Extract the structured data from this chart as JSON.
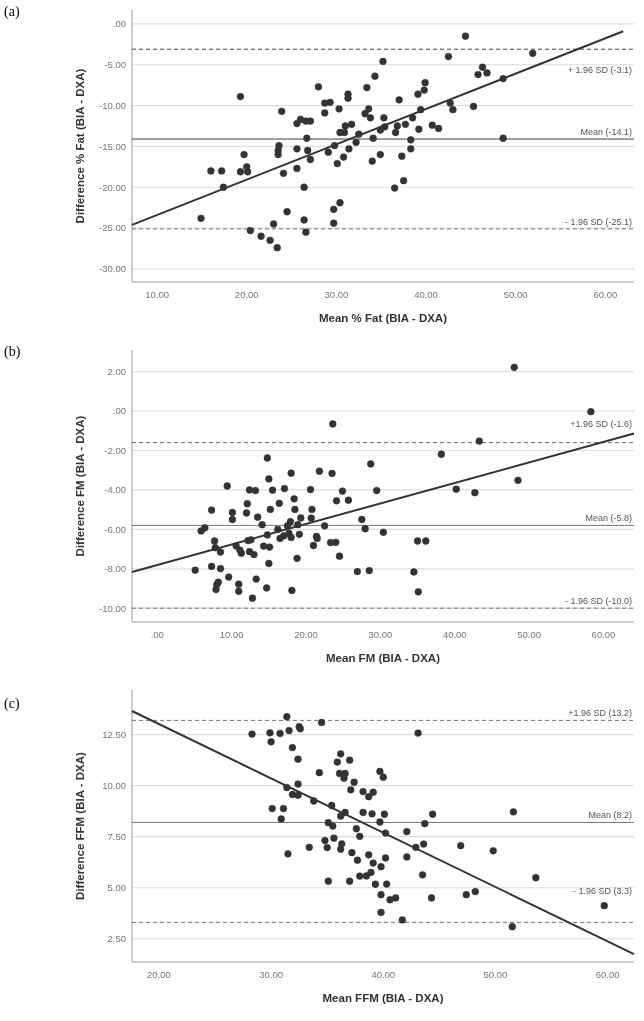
{
  "chart_data": [
    {
      "type": "scatter",
      "title": "(a)",
      "xlabel": "Mean % Fat (BIA - DXA)",
      "ylabel": "Difference % Fat (BIA - DXA)",
      "xlim": [
        7.2,
        63.2
      ],
      "ylim": [
        -31.6,
        1.7
      ],
      "xticks": [
        {
          "value": 10,
          "label": "10.00"
        },
        {
          "value": 20,
          "label": "20.00"
        },
        {
          "value": 30,
          "label": "30.00"
        },
        {
          "value": 40,
          "label": "40.00"
        },
        {
          "value": 50,
          "label": "50.00"
        },
        {
          "value": 60,
          "label": "60.00"
        }
      ],
      "yticks": [
        {
          "value": 0,
          "label": ".00"
        },
        {
          "value": -5,
          "label": "-5.00"
        },
        {
          "value": -10,
          "label": "-10.00"
        },
        {
          "value": -15,
          "label": "-15.00"
        },
        {
          "value": -20,
          "label": "-20.00"
        },
        {
          "value": -25,
          "label": "-25.00"
        },
        {
          "value": -30,
          "label": "-30.00"
        }
      ],
      "grid": "y",
      "series": [
        {
          "color": "#333333",
          "marker": "circle",
          "values": [
            -8.9,
            -18.0,
            -18.0,
            -20.0,
            -23.8,
            -18.1,
            -16.0,
            -17.5,
            -18.1,
            -25.3,
            -26.0,
            -26.5,
            -24.5,
            -27.4,
            -14.9,
            -15.5,
            -16.0,
            -10.7,
            -18.3,
            -23.0,
            -12.2,
            -11.7,
            -11.9,
            -11.9,
            -15.3,
            -17.7,
            -14.0,
            -15.5,
            -16.6,
            -20.0,
            -24.0,
            -25.5,
            -7.7,
            -9.7,
            -9.6,
            -10.9,
            -15.7,
            -22.7,
            -24.4,
            -14.9,
            -17.1,
            -10.4,
            -21.9,
            -13.3,
            -13.3,
            -16.3,
            -12.5,
            -8.6,
            -9.1,
            -15.3,
            -12.3,
            -14.5,
            -13.5,
            -11.0,
            -7.8,
            -10.4,
            -11.5,
            -16.8,
            -14.0,
            -6.4,
            -13.0,
            -16.0,
            -4.6,
            -11.5,
            -12.6,
            -20.1,
            -13.3,
            -12.5,
            -9.3,
            -16.2,
            -19.2,
            -12.3,
            -14.2,
            -15.3,
            -11.5,
            -8.6,
            -12.9,
            -10.5,
            -8.1,
            -7.2,
            -12.4,
            -12.8,
            -4.0,
            -9.7,
            -10.5,
            -1.5,
            -10.1,
            -6.2,
            -5.3,
            -6.0,
            -6.7,
            -14.0,
            -3.6
          ]
        },
        {
          "type": "line",
          "color": "#333333",
          "x": [
            7.2,
            62.0
          ],
          "values": [
            -24.6,
            -0.9
          ]
        }
      ],
      "x": [
        19.3,
        16.0,
        17.2,
        17.4,
        14.9,
        19.3,
        19.7,
        20.0,
        20.1,
        20.4,
        21.6,
        22.6,
        23.0,
        23.4,
        23.6,
        23.5,
        23.5,
        23.9,
        24.1,
        24.5,
        25.6,
        26.0,
        26.6,
        27.1,
        25.6,
        25.6,
        26.7,
        26.8,
        27.1,
        26.4,
        26.4,
        26.6,
        28.0,
        28.7,
        29.3,
        28.7,
        29.1,
        29.7,
        29.7,
        29.8,
        30.1,
        30.3,
        30.4,
        30.4,
        30.9,
        30.8,
        31.0,
        31.3,
        31.3,
        31.4,
        31.7,
        32.2,
        32.5,
        33.2,
        33.4,
        33.6,
        33.8,
        34.0,
        34.1,
        34.3,
        34.9,
        34.9,
        35.2,
        35.3,
        35.4,
        36.5,
        36.6,
        36.8,
        37.0,
        37.3,
        37.5,
        37.7,
        38.3,
        38.3,
        38.5,
        39.1,
        39.2,
        39.4,
        39.8,
        39.9,
        40.7,
        41.4,
        42.5,
        42.7,
        43.0,
        44.4,
        45.3,
        45.8,
        46.3,
        46.8,
        48.6,
        48.6,
        51.9
      ],
      "ref_lines": [
        {
          "axis": "y",
          "value": -3.1,
          "label": "+ 1.96 SD (-3.1)",
          "line_style": "dashed",
          "color": "#444444"
        },
        {
          "axis": "y",
          "value": -14.1,
          "label": "Mean (-14.1)",
          "line_style": "solid",
          "color": "#444444"
        },
        {
          "axis": "y",
          "value": -25.1,
          "label": "- 1.96 SD (-25.1)",
          "line_style": "dashed",
          "color": "#777777"
        }
      ]
    },
    {
      "type": "scatter",
      "title": "(b)",
      "xlabel": "Mean FM (BIA - DXA)",
      "ylabel": "Difference FM (BIA - DXA)",
      "xlim": [
        -3.4,
        64.1
      ],
      "ylim": [
        -10.7,
        3.1
      ],
      "xticks": [
        {
          "value": 0,
          "label": ".00"
        },
        {
          "value": 10,
          "label": "10.00"
        },
        {
          "value": 20,
          "label": "20.00"
        },
        {
          "value": 30,
          "label": "30.00"
        },
        {
          "value": 40,
          "label": "40.00"
        },
        {
          "value": 50,
          "label": "50.00"
        },
        {
          "value": 60,
          "label": "60.00"
        }
      ],
      "yticks": [
        {
          "value": 2,
          "label": "2.00"
        },
        {
          "value": 0,
          "label": ".00"
        },
        {
          "value": -2,
          "label": "-2.00"
        },
        {
          "value": -4,
          "label": "-4.00"
        },
        {
          "value": -6,
          "label": "-6.00"
        },
        {
          "value": -8,
          "label": "-8.00"
        },
        {
          "value": -10,
          "label": "-10.00"
        }
      ],
      "grid": "y",
      "series": [
        {
          "color": "#333333",
          "marker": "circle",
          "x": [
            5.1,
            5.9,
            6.4,
            7.3,
            7.3,
            7.7,
            7.8,
            7.9,
            8.0,
            8.2,
            8.5,
            8.5,
            9.4,
            9.6,
            10.1,
            10.1,
            10.6,
            10.95,
            10.95,
            11.1,
            11.3,
            12.0,
            12.1,
            12.4,
            12.2,
            12.4,
            12.6,
            12.8,
            13.0,
            13.2,
            13.3,
            13.5,
            14.1,
            14.3,
            14.7,
            14.8,
            14.8,
            15.0,
            15.1,
            15.0,
            15.2,
            15.5,
            16.2,
            16.4,
            16.5,
            17.0,
            17.1,
            17.5,
            17.7,
            17.9,
            18.0,
            18.0,
            18.1,
            18.4,
            18.5,
            18.8,
            18.9,
            19.1,
            19.3,
            20.6,
            20.7,
            20.8,
            21.0,
            21.4,
            21.5,
            21.8,
            22.5,
            23.3,
            23.5,
            23.6,
            24.0,
            24.1,
            24.5,
            24.9,
            25.7,
            26.9,
            27.5,
            27.95,
            28.5,
            28.7,
            29.5,
            30.4,
            34.5,
            35.0,
            35.1,
            36.1,
            38.2,
            40.2,
            42.7,
            43.3,
            48.0,
            48.5,
            58.3
          ],
          "values": [
            -8.07,
            -6.08,
            -5.92,
            -5.02,
            -7.88,
            -6.59,
            -6.93,
            -9.05,
            -8.81,
            -8.68,
            -7.99,
            -7.15,
            -3.8,
            -8.42,
            -5.14,
            -5.5,
            -6.84,
            -8.78,
            -9.14,
            -7.05,
            -7.21,
            -5.17,
            -4.7,
            -4.0,
            -6.57,
            -7.13,
            -6.53,
            -9.49,
            -7.28,
            -4.03,
            -8.52,
            -5.38,
            -5.76,
            -6.85,
            -8.97,
            -2.38,
            -6.28,
            -3.44,
            -6.9,
            -7.73,
            -4.99,
            -4.01,
            -6.0,
            -4.68,
            -6.46,
            -6.33,
            -3.93,
            -5.82,
            -6.2,
            -5.61,
            -3.15,
            -6.41,
            -9.1,
            -4.45,
            -4.99,
            -7.47,
            -5.76,
            -6.25,
            -5.42,
            -3.98,
            -5.43,
            -4.99,
            -6.82,
            -6.36,
            -6.46,
            -3.05,
            -5.82,
            -6.67,
            -3.16,
            -0.65,
            -6.66,
            -4.55,
            -7.36,
            -4.06,
            -4.52,
            -8.14,
            -5.5,
            -5.97,
            -8.09,
            -2.68,
            -4.03,
            -6.15,
            -8.16,
            -6.59,
            -9.17,
            -6.59,
            -2.19,
            -3.96,
            -4.14,
            -1.52,
            2.22,
            -3.51,
            -0.03
          ]
        },
        {
          "type": "line",
          "color": "#333333",
          "x": [
            -3.4,
            64.1
          ],
          "values": [
            -8.16,
            -1.14
          ]
        }
      ],
      "ref_lines": [
        {
          "axis": "y",
          "value": -1.6,
          "label": "+1.96 SD (-1.6)",
          "line_style": "dashed",
          "color": "#666666"
        },
        {
          "axis": "y",
          "value": -5.8,
          "label": "Mean (-5.8)",
          "line_style": "solid",
          "color": "#777777"
        },
        {
          "axis": "y",
          "value": -10.0,
          "label": "- 1.96 SD (-10.0)",
          "line_style": "dashed",
          "color": "#777777"
        }
      ]
    },
    {
      "type": "scatter",
      "title": "(c)",
      "xlabel": "Mean FFM (BIA - DXA)",
      "ylabel": "Difference FFM (BIA - DXA)",
      "xlim": [
        17.6,
        62.35
      ],
      "ylim": [
        1.36,
        14.69
      ],
      "xticks": [
        {
          "value": 20,
          "label": "20.00"
        },
        {
          "value": 30,
          "label": "30.00"
        },
        {
          "value": 40,
          "label": "40.00"
        },
        {
          "value": 50,
          "label": "50.00"
        },
        {
          "value": 60,
          "label": "60.00"
        }
      ],
      "yticks": [
        {
          "value": 2.5,
          "label": "2.50"
        },
        {
          "value": 5,
          "label": "5.00"
        },
        {
          "value": 7.5,
          "label": "7.50"
        },
        {
          "value": 10,
          "label": "10.00"
        },
        {
          "value": 12.5,
          "label": "12.50"
        }
      ],
      "grid": "y",
      "series": [
        {
          "color": "#333333",
          "marker": "circle",
          "x": [
            28.3,
            29.9,
            30.0,
            30.1,
            30.8,
            30.9,
            31.1,
            31.4,
            31.4,
            31.5,
            31.6,
            31.9,
            31.9,
            32.4,
            32.4,
            32.4,
            32.5,
            32.6,
            33.4,
            33.8,
            34.3,
            34.5,
            34.8,
            35.0,
            35.1,
            35.1,
            35.4,
            35.5,
            35.6,
            35.9,
            36.1,
            36.2,
            36.2,
            36.2,
            36.3,
            36.5,
            36.6,
            36.6,
            37.0,
            37.0,
            37.1,
            37.2,
            37.4,
            37.6,
            37.7,
            37.9,
            37.9,
            38.2,
            38.2,
            38.5,
            38.7,
            38.7,
            38.9,
            39.0,
            39.1,
            39.1,
            39.3,
            39.7,
            39.7,
            39.8,
            39.8,
            39.8,
            40.0,
            40.1,
            40.2,
            40.2,
            40.3,
            40.6,
            41.1,
            41.7,
            42.1,
            42.1,
            42.9,
            43.1,
            43.5,
            43.6,
            43.7,
            44.3,
            44.4,
            46.9,
            47.4,
            48.2,
            49.8,
            51.5,
            51.6,
            53.6,
            59.7
          ],
          "values": [
            12.53,
            12.59,
            12.15,
            8.88,
            12.56,
            8.37,
            8.88,
            13.38,
            9.91,
            6.66,
            12.7,
            9.57,
            11.87,
            11.3,
            10.08,
            9.53,
            12.89,
            12.79,
            6.98,
            9.25,
            10.64,
            13.1,
            7.31,
            6.97,
            5.32,
            8.19,
            9.03,
            8.02,
            7.43,
            11.16,
            10.6,
            11.56,
            8.51,
            6.89,
            7.15,
            10.37,
            10.6,
            8.69,
            5.32,
            11.25,
            9.8,
            6.72,
            10.17,
            7.89,
            6.35,
            7.52,
            5.57,
            9.71,
            8.69,
            5.58,
            6.61,
            9.46,
            5.75,
            8.62,
            9.68,
            6.21,
            5.17,
            10.7,
            8.22,
            3.79,
            4.66,
            6.03,
            10.42,
            8.6,
            7.68,
            6.46,
            5.18,
            4.41,
            4.5,
            3.42,
            6.51,
            7.75,
            6.98,
            12.58,
            5.63,
            7.14,
            8.14,
            4.5,
            8.6,
            7.06,
            4.66,
            4.81,
            6.81,
            3.09,
            8.72,
            5.49,
            4.12
          ]
        },
        {
          "type": "line",
          "color": "#333333",
          "x": [
            17.6,
            62.35
          ],
          "values": [
            13.66,
            1.75
          ]
        }
      ],
      "ref_lines": [
        {
          "axis": "y",
          "value": 13.2,
          "label": "+1.96 SD (13.2)",
          "line_style": "dashed",
          "color": "#777777"
        },
        {
          "axis": "y",
          "value": 8.2,
          "label": "Mean (8.2)",
          "line_style": "solid",
          "color": "#777777"
        },
        {
          "axis": "y",
          "value": 3.3,
          "label": "- 1.96 SD (3.3)",
          "line_style": "dashed",
          "color": "#777777"
        }
      ]
    }
  ]
}
